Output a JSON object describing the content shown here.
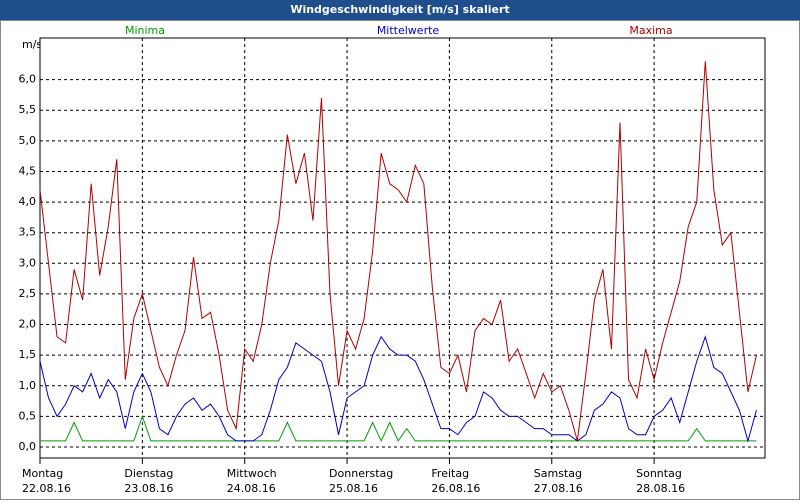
{
  "chart_data": {
    "type": "line",
    "title": "Windgeschwindigkeit [m/s] skaliert",
    "y_label": "m/s",
    "xlim": [
      0,
      170
    ],
    "ylim": [
      -0.18,
      6.68
    ],
    "grid": true,
    "xticks": [
      {
        "value": 0,
        "label": "Montag",
        "date": "22.08.16"
      },
      {
        "value": 24,
        "label": "Dienstag",
        "date": "23.08.16"
      },
      {
        "value": 48,
        "label": "Mittwoch",
        "date": "24.08.16"
      },
      {
        "value": 72,
        "label": "Donnerstag",
        "date": "25.08.16"
      },
      {
        "value": 96,
        "label": "Freitag",
        "date": "26.08.16"
      },
      {
        "value": 120,
        "label": "Samstag",
        "date": "27.08.16"
      },
      {
        "value": 144,
        "label": "Sonntag",
        "date": "28.08.16"
      }
    ],
    "yticks": [
      {
        "value": 0,
        "label": "0,0"
      },
      {
        "value": 0.5,
        "label": "0,5"
      },
      {
        "value": 1,
        "label": "1,0"
      },
      {
        "value": 1.5,
        "label": "1,5"
      },
      {
        "value": 2,
        "label": "2,0"
      },
      {
        "value": 2.5,
        "label": "2,5"
      },
      {
        "value": 3,
        "label": "3,0"
      },
      {
        "value": 3.5,
        "label": "3,5"
      },
      {
        "value": 4,
        "label": "4,0"
      },
      {
        "value": 4.5,
        "label": "4,5"
      },
      {
        "value": 5,
        "label": "5,0"
      },
      {
        "value": 5.5,
        "label": "5,5"
      },
      {
        "value": 6,
        "label": "6,0"
      }
    ],
    "x": [
      0,
      2,
      4,
      6,
      8,
      10,
      12,
      14,
      16,
      18,
      20,
      22,
      24,
      26,
      28,
      30,
      32,
      34,
      36,
      38,
      40,
      42,
      44,
      46,
      48,
      50,
      52,
      54,
      56,
      58,
      60,
      62,
      64,
      66,
      68,
      70,
      72,
      74,
      76,
      78,
      80,
      82,
      84,
      86,
      88,
      90,
      92,
      94,
      96,
      98,
      100,
      102,
      104,
      106,
      108,
      110,
      112,
      114,
      116,
      118,
      120,
      122,
      124,
      126,
      128,
      130,
      132,
      134,
      136,
      138,
      140,
      142,
      144,
      146,
      148,
      150,
      152,
      154,
      156,
      158,
      160,
      162,
      164,
      166,
      168
    ],
    "series": [
      {
        "name": "Minima",
        "color": "#00a000",
        "values": [
          0.1,
          0.1,
          0.1,
          0.1,
          0.4,
          0.1,
          0.1,
          0.1,
          0.1,
          0.1,
          0.1,
          0.1,
          0.5,
          0.1,
          0.1,
          0.1,
          0.1,
          0.1,
          0.1,
          0.1,
          0.1,
          0.1,
          0.1,
          0.1,
          0.1,
          0.1,
          0.1,
          0.1,
          0.1,
          0.4,
          0.1,
          0.1,
          0.1,
          0.1,
          0.1,
          0.1,
          0.1,
          0.1,
          0.1,
          0.4,
          0.1,
          0.4,
          0.1,
          0.3,
          0.1,
          0.1,
          0.1,
          0.1,
          0.1,
          0.1,
          0.1,
          0.1,
          0.1,
          0.1,
          0.1,
          0.1,
          0.1,
          0.1,
          0.1,
          0.1,
          0.1,
          0.1,
          0.1,
          0.1,
          0.1,
          0.1,
          0.1,
          0.1,
          0.1,
          0.1,
          0.1,
          0.1,
          0.1,
          0.1,
          0.1,
          0.1,
          0.1,
          0.3,
          0.1,
          0.1,
          0.1,
          0.1,
          0.1,
          0.1,
          0.1
        ]
      },
      {
        "name": "Mittelwerte",
        "color": "#0000c0",
        "values": [
          1.4,
          0.8,
          0.5,
          0.7,
          1.0,
          0.9,
          1.2,
          0.8,
          1.1,
          0.9,
          0.3,
          0.9,
          1.2,
          0.9,
          0.3,
          0.2,
          0.5,
          0.7,
          0.8,
          0.6,
          0.7,
          0.5,
          0.2,
          0.1,
          0.1,
          0.1,
          0.2,
          0.6,
          1.1,
          1.3,
          1.7,
          1.6,
          1.5,
          1.4,
          0.9,
          0.2,
          0.8,
          0.9,
          1.0,
          1.5,
          1.8,
          1.6,
          1.5,
          1.5,
          1.4,
          1.1,
          0.7,
          0.3,
          0.3,
          0.2,
          0.4,
          0.5,
          0.9,
          0.8,
          0.6,
          0.5,
          0.5,
          0.4,
          0.3,
          0.3,
          0.2,
          0.2,
          0.2,
          0.1,
          0.2,
          0.6,
          0.7,
          0.9,
          0.8,
          0.3,
          0.2,
          0.2,
          0.5,
          0.6,
          0.8,
          0.4,
          0.9,
          1.4,
          1.8,
          1.3,
          1.2,
          0.9,
          0.6,
          0.1,
          0.6
        ]
      },
      {
        "name": "Maxima",
        "color": "#b00000",
        "values": [
          4.2,
          3.0,
          1.8,
          1.7,
          2.9,
          2.4,
          4.3,
          2.8,
          3.6,
          4.7,
          1.1,
          2.1,
          2.5,
          1.9,
          1.3,
          1.0,
          1.5,
          1.9,
          3.1,
          2.1,
          2.2,
          1.5,
          0.6,
          0.3,
          1.6,
          1.4,
          2.0,
          3.0,
          3.7,
          5.1,
          4.3,
          4.8,
          3.7,
          5.7,
          2.5,
          1.0,
          1.9,
          1.6,
          2.1,
          3.2,
          4.8,
          4.3,
          4.2,
          4.0,
          4.6,
          4.3,
          2.6,
          1.3,
          1.2,
          1.5,
          0.9,
          1.9,
          2.1,
          2.0,
          2.4,
          1.4,
          1.6,
          1.2,
          0.8,
          1.2,
          0.9,
          1.0,
          0.6,
          0.1,
          1.2,
          2.4,
          2.9,
          1.6,
          5.3,
          1.1,
          0.8,
          1.6,
          1.1,
          1.7,
          2.2,
          2.7,
          3.6,
          4.0,
          6.3,
          4.2,
          3.3,
          3.5,
          2.2,
          0.9,
          1.5
        ]
      }
    ]
  }
}
